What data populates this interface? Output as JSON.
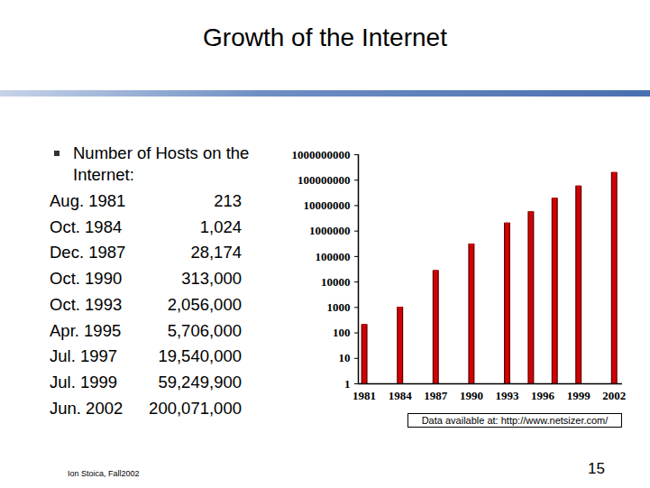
{
  "chart_data": {
    "type": "bar",
    "title": "Growth of the Internet",
    "x": [
      1981,
      1984,
      1987,
      1990,
      1993,
      1995,
      1997,
      1999,
      2002
    ],
    "values": [
      213,
      1024,
      28174,
      313000,
      2056000,
      5706000,
      19540000,
      59249900,
      200071000
    ],
    "color": "#d40000",
    "xlim": [
      1980.5,
      2002.7
    ],
    "xticks": [
      1981,
      1984,
      1987,
      1990,
      1993,
      1996,
      1999,
      2002
    ],
    "ylim": [
      1,
      1000000000
    ],
    "yticks": [
      1,
      10,
      100,
      1000,
      10000,
      100000,
      1000000,
      10000000,
      100000000,
      1000000000
    ],
    "log": "y",
    "grid": false,
    "annotations": [
      "Data available at: http://www.netsizer.com/"
    ]
  },
  "slide": {
    "bullet": "Number of Hosts on the Internet:",
    "rows": [
      [
        "Aug. 1981",
        "213"
      ],
      [
        "Oct. 1984",
        "1,024"
      ],
      [
        "Dec. 1987",
        "28,174"
      ],
      [
        "Oct. 1990",
        "313,000"
      ],
      [
        "Oct. 1993",
        "2,056,000"
      ],
      [
        "Apr. 1995",
        "5,706,000"
      ],
      [
        "Jul. 1997",
        "19,540,000"
      ],
      [
        "Jul. 1999",
        "59,249,900"
      ],
      [
        "Jun. 2002",
        "200,071,000"
      ]
    ],
    "footer": "Ion Stoica, Fall2002",
    "page": "15"
  }
}
